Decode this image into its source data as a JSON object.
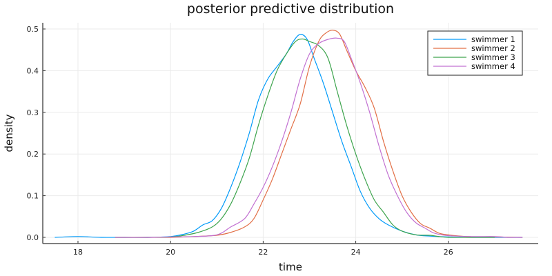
{
  "chart_data": {
    "type": "line",
    "title": "posterior predictive distribution",
    "xlabel": "time",
    "ylabel": "density",
    "xlim": [
      17.25,
      27.85
    ],
    "ylim": [
      -0.015,
      0.515
    ],
    "xticks": [
      18,
      20,
      22,
      24,
      26
    ],
    "yticks": [
      0.0,
      0.1,
      0.2,
      0.3,
      0.4,
      0.5
    ],
    "ytick_labels": [
      "0.0",
      "0.1",
      "0.2",
      "0.3",
      "0.4",
      "0.5"
    ],
    "grid": true,
    "legend_position": "top-right",
    "series": [
      {
        "name": "swimmer 1",
        "color": "#009af9",
        "x": [
          17.5,
          18.0,
          18.5,
          19.0,
          19.5,
          20.0,
          20.3,
          20.5,
          20.7,
          20.9,
          21.1,
          21.3,
          21.5,
          21.7,
          21.9,
          22.1,
          22.3,
          22.5,
          22.65,
          22.8,
          22.95,
          23.1,
          23.3,
          23.5,
          23.7,
          23.9,
          24.1,
          24.3,
          24.5,
          24.7,
          25.0,
          25.3,
          25.6,
          26.0,
          26.5,
          27.0,
          27.6
        ],
        "y": [
          0.0,
          0.002,
          0.0,
          0.0,
          0.0,
          0.002,
          0.008,
          0.015,
          0.03,
          0.04,
          0.07,
          0.12,
          0.18,
          0.25,
          0.33,
          0.38,
          0.41,
          0.44,
          0.47,
          0.487,
          0.475,
          0.43,
          0.37,
          0.3,
          0.23,
          0.17,
          0.11,
          0.07,
          0.045,
          0.03,
          0.015,
          0.006,
          0.003,
          0.001,
          0.0,
          0.0,
          0.0
        ]
      },
      {
        "name": "swimmer 2",
        "color": "#e26f46",
        "x": [
          18.8,
          19.5,
          20.0,
          20.5,
          21.0,
          21.3,
          21.6,
          21.8,
          22.0,
          22.2,
          22.4,
          22.6,
          22.8,
          23.0,
          23.2,
          23.35,
          23.5,
          23.65,
          23.8,
          24.0,
          24.2,
          24.4,
          24.6,
          24.8,
          25.0,
          25.2,
          25.4,
          25.6,
          25.8,
          26.0,
          26.4,
          27.0,
          27.6
        ],
        "y": [
          0.0,
          0.0,
          0.0,
          0.002,
          0.005,
          0.012,
          0.025,
          0.045,
          0.09,
          0.14,
          0.2,
          0.26,
          0.32,
          0.41,
          0.47,
          0.49,
          0.497,
          0.488,
          0.45,
          0.4,
          0.36,
          0.31,
          0.23,
          0.16,
          0.1,
          0.06,
          0.033,
          0.022,
          0.01,
          0.006,
          0.002,
          0.001,
          0.0
        ]
      },
      {
        "name": "swimmer 3",
        "color": "#3da44d",
        "x": [
          18.8,
          19.5,
          20.0,
          20.3,
          20.6,
          20.9,
          21.1,
          21.3,
          21.5,
          21.7,
          21.9,
          22.1,
          22.3,
          22.5,
          22.7,
          22.85,
          23.0,
          23.2,
          23.4,
          23.6,
          23.8,
          24.0,
          24.2,
          24.4,
          24.6,
          24.8,
          25.0,
          25.3,
          25.6,
          25.8,
          26.0,
          26.5,
          27.0
        ],
        "y": [
          0.0,
          0.0,
          0.001,
          0.005,
          0.012,
          0.025,
          0.045,
          0.08,
          0.13,
          0.19,
          0.27,
          0.34,
          0.4,
          0.44,
          0.47,
          0.476,
          0.47,
          0.46,
          0.43,
          0.35,
          0.27,
          0.2,
          0.14,
          0.09,
          0.06,
          0.03,
          0.015,
          0.006,
          0.005,
          0.002,
          0.0,
          0.0,
          0.0
        ]
      },
      {
        "name": "swimmer 4",
        "color": "#c271d2",
        "x": [
          18.8,
          19.5,
          20.0,
          20.5,
          21.0,
          21.3,
          21.6,
          21.8,
          22.0,
          22.2,
          22.4,
          22.6,
          22.8,
          23.0,
          23.2,
          23.4,
          23.6,
          23.75,
          23.9,
          24.1,
          24.3,
          24.5,
          24.7,
          24.9,
          25.1,
          25.3,
          25.5,
          25.7,
          26.0,
          26.5,
          27.0,
          27.3,
          27.6
        ],
        "y": [
          0.0,
          0.0,
          0.001,
          0.002,
          0.006,
          0.025,
          0.045,
          0.08,
          0.12,
          0.17,
          0.23,
          0.3,
          0.38,
          0.44,
          0.465,
          0.475,
          0.478,
          0.47,
          0.43,
          0.37,
          0.3,
          0.22,
          0.15,
          0.1,
          0.06,
          0.035,
          0.022,
          0.01,
          0.004,
          0.002,
          0.002,
          0.0,
          0.0
        ]
      }
    ]
  }
}
